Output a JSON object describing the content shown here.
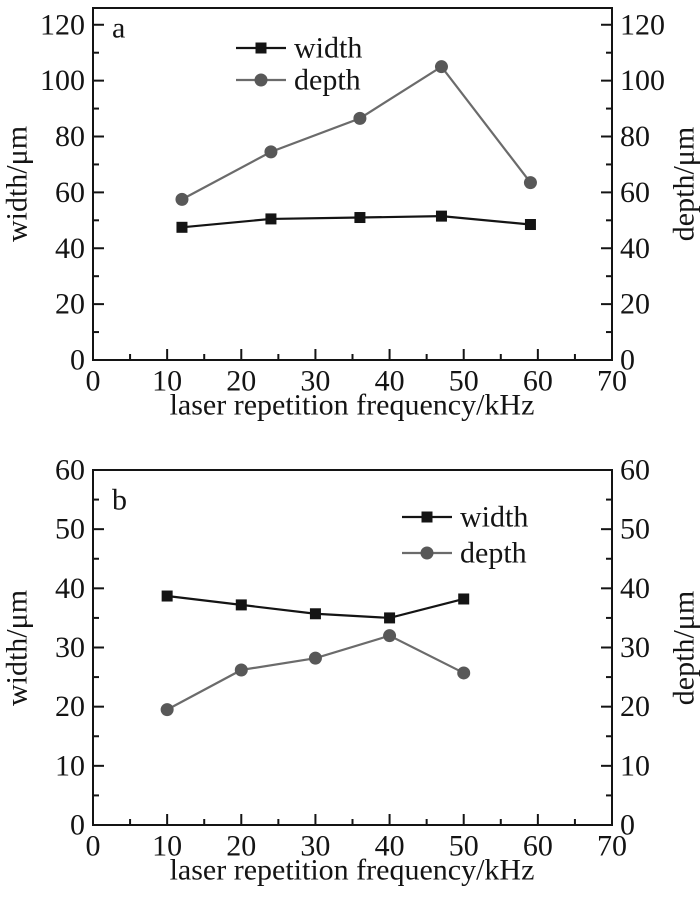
{
  "figure": {
    "background": "#ffffff",
    "text_color": "#141414",
    "panels": [
      "a",
      "b"
    ]
  },
  "chart_data": [
    {
      "id": "a",
      "type": "line",
      "panel_label": "a",
      "xlabel": "laser repetition frequency/kHz",
      "ylabel_left": "width/μm",
      "ylabel_right": "depth/μm",
      "xlim": [
        0,
        70
      ],
      "ylim": [
        0,
        126
      ],
      "xticks": [
        0,
        10,
        20,
        30,
        40,
        50,
        60,
        70
      ],
      "yticks": [
        0,
        20,
        40,
        60,
        80,
        100,
        120
      ],
      "x_minor_step": 5,
      "y_minor_step": 10,
      "x": [
        12,
        24,
        36,
        47,
        59
      ],
      "series": [
        {
          "name": "width",
          "marker": "square",
          "line_color": "#141414",
          "marker_color": "#141414",
          "values": [
            47.5,
            50.5,
            51,
            51.5,
            48.5
          ]
        },
        {
          "name": "depth",
          "marker": "circle",
          "line_color": "#6b6b6b",
          "marker_color": "#585858",
          "values": [
            57.5,
            74.5,
            86.5,
            105,
            63.5
          ]
        }
      ],
      "legend": {
        "position": "top-center",
        "entries": [
          "width",
          "depth"
        ]
      },
      "grid": false
    },
    {
      "id": "b",
      "type": "line",
      "panel_label": "b",
      "xlabel": "laser repetition frequency/kHz",
      "ylabel_left": "width/μm",
      "ylabel_right": "depth/μm",
      "xlim": [
        0,
        70
      ],
      "ylim": [
        0,
        60
      ],
      "xticks": [
        0,
        10,
        20,
        30,
        40,
        50,
        60,
        70
      ],
      "yticks": [
        0,
        10,
        20,
        30,
        40,
        50,
        60
      ],
      "x_minor_step": 5,
      "y_minor_step": 5,
      "x": [
        10,
        20,
        30,
        40,
        50
      ],
      "series": [
        {
          "name": "width",
          "marker": "square",
          "line_color": "#141414",
          "marker_color": "#141414",
          "values": [
            38.7,
            37.2,
            35.7,
            35.0,
            38.2
          ]
        },
        {
          "name": "depth",
          "marker": "circle",
          "line_color": "#6b6b6b",
          "marker_color": "#585858",
          "values": [
            19.5,
            26.2,
            28.2,
            32.0,
            25.7
          ]
        }
      ],
      "legend": {
        "position": "top-right",
        "entries": [
          "width",
          "depth"
        ]
      },
      "grid": false
    }
  ]
}
